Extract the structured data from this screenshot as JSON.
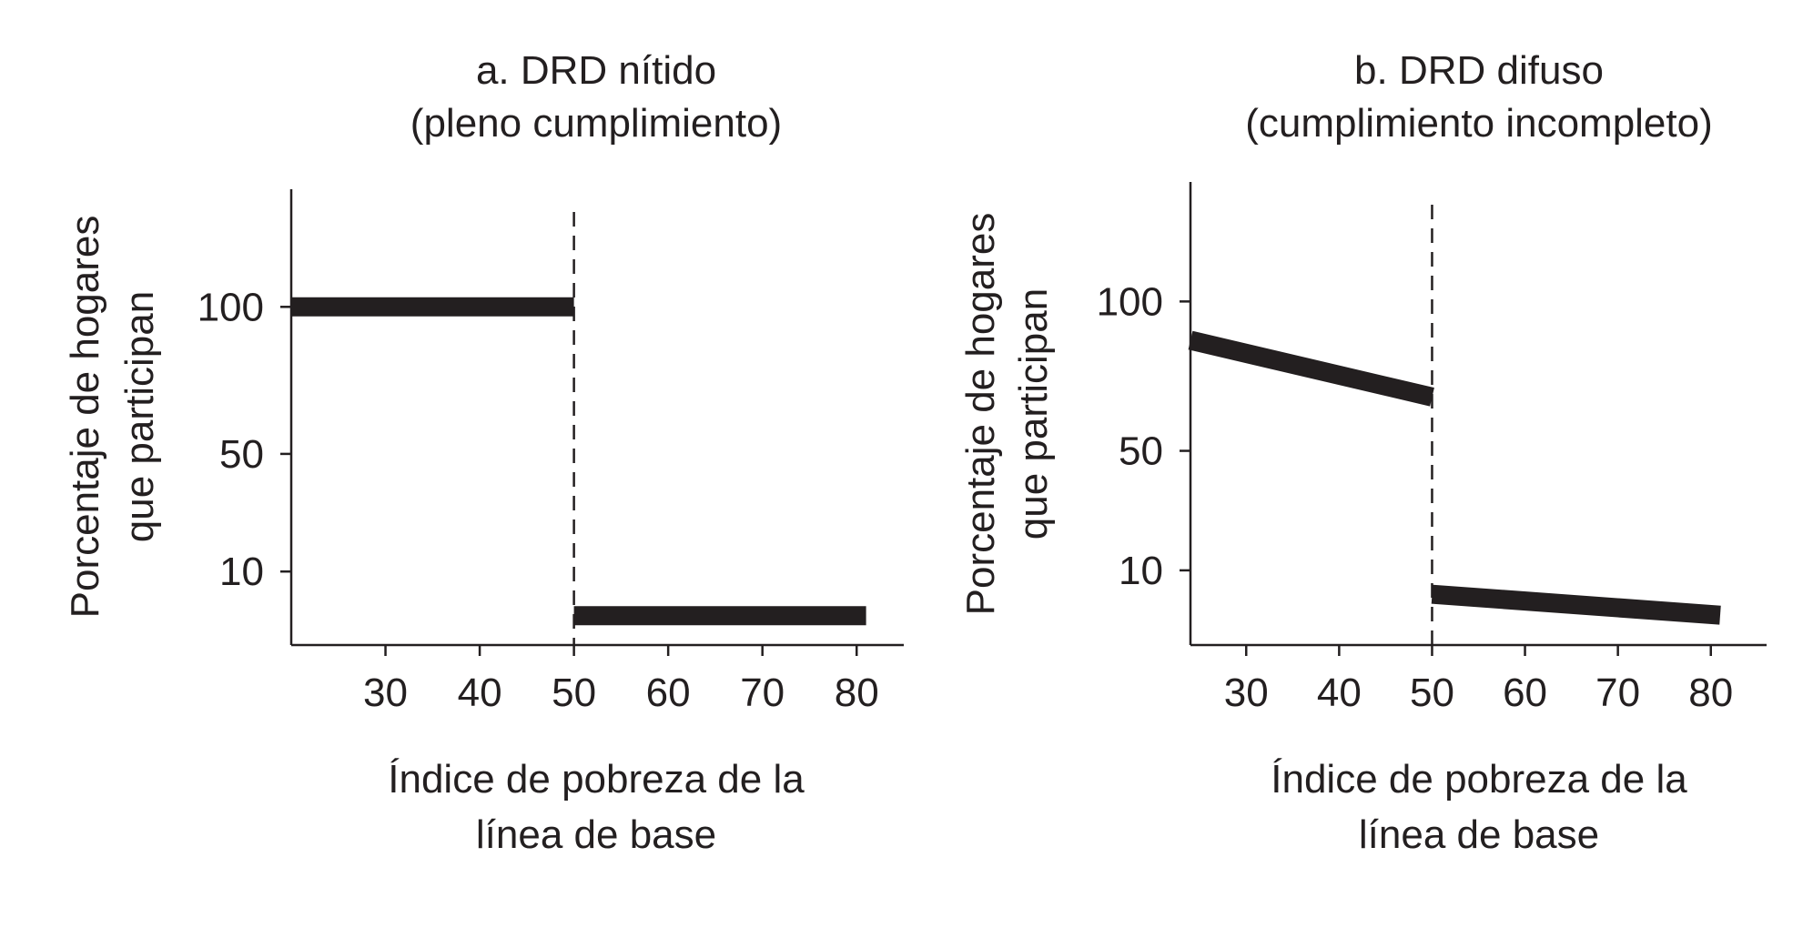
{
  "colors": {
    "ink": "#231f20",
    "background": "#ffffff"
  },
  "chart_data": [
    {
      "type": "line",
      "title": [
        "a. DRD nítido",
        "(pleno cumplimiento)"
      ],
      "xlabel": [
        "Índice de pobreza de la",
        "línea de base"
      ],
      "ylabel": [
        "Porcentaje de hogares",
        "que participan"
      ],
      "xlim": [
        20,
        85
      ],
      "ylim": [
        -15,
        140
      ],
      "xticks": [
        "30",
        "40",
        "50",
        "60",
        "70",
        "80"
      ],
      "yticks": [
        "10",
        "50",
        "100"
      ],
      "cutoff": 50,
      "series": [
        {
          "x": [
            20,
            50
          ],
          "y": [
            100,
            100
          ]
        },
        {
          "x": [
            50,
            81
          ],
          "y": [
            -5,
            -5
          ]
        }
      ]
    },
    {
      "type": "line",
      "title": [
        "b. DRD difuso",
        "(cumplimiento incompleto)"
      ],
      "xlabel": [
        "Índice de pobreza de la",
        "línea de base"
      ],
      "ylabel": [
        "Porcentaje de hogares",
        "que participan"
      ],
      "xlim": [
        24,
        86
      ],
      "ylim": [
        -15,
        140
      ],
      "xticks": [
        "30",
        "40",
        "50",
        "60",
        "70",
        "80"
      ],
      "yticks": [
        "10",
        "50",
        "100"
      ],
      "cutoff": 50,
      "series": [
        {
          "x": [
            24,
            50
          ],
          "y": [
            87,
            68
          ]
        },
        {
          "x": [
            50,
            81
          ],
          "y": [
            2,
            -5
          ]
        }
      ]
    }
  ]
}
